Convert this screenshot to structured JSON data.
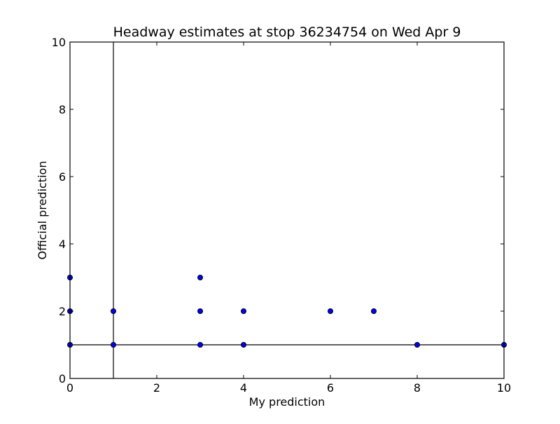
{
  "chart_data": {
    "type": "scatter",
    "title": "Headway estimates at stop 36234754 on Wed Apr 9",
    "xlabel": "My prediction",
    "ylabel": "Official prediction",
    "xlim": [
      0,
      10
    ],
    "ylim": [
      0,
      10
    ],
    "x_ticks": [
      "0",
      "2",
      "4",
      "6",
      "8",
      "10"
    ],
    "y_ticks": [
      "0",
      "2",
      "4",
      "6",
      "8",
      "10"
    ],
    "grid": false,
    "reference_lines": {
      "vertical_x": 1,
      "horizontal_y": 1
    },
    "marker_color": "#0000ff",
    "points": [
      {
        "x": 0,
        "y": 3
      },
      {
        "x": 0,
        "y": 2
      },
      {
        "x": 0,
        "y": 1
      },
      {
        "x": 1,
        "y": 2
      },
      {
        "x": 1,
        "y": 1
      },
      {
        "x": 3,
        "y": 3
      },
      {
        "x": 3,
        "y": 2
      },
      {
        "x": 3,
        "y": 1
      },
      {
        "x": 4,
        "y": 2
      },
      {
        "x": 4,
        "y": 1
      },
      {
        "x": 6,
        "y": 2
      },
      {
        "x": 7,
        "y": 2
      },
      {
        "x": 8,
        "y": 1
      },
      {
        "x": 10,
        "y": 1
      }
    ]
  }
}
